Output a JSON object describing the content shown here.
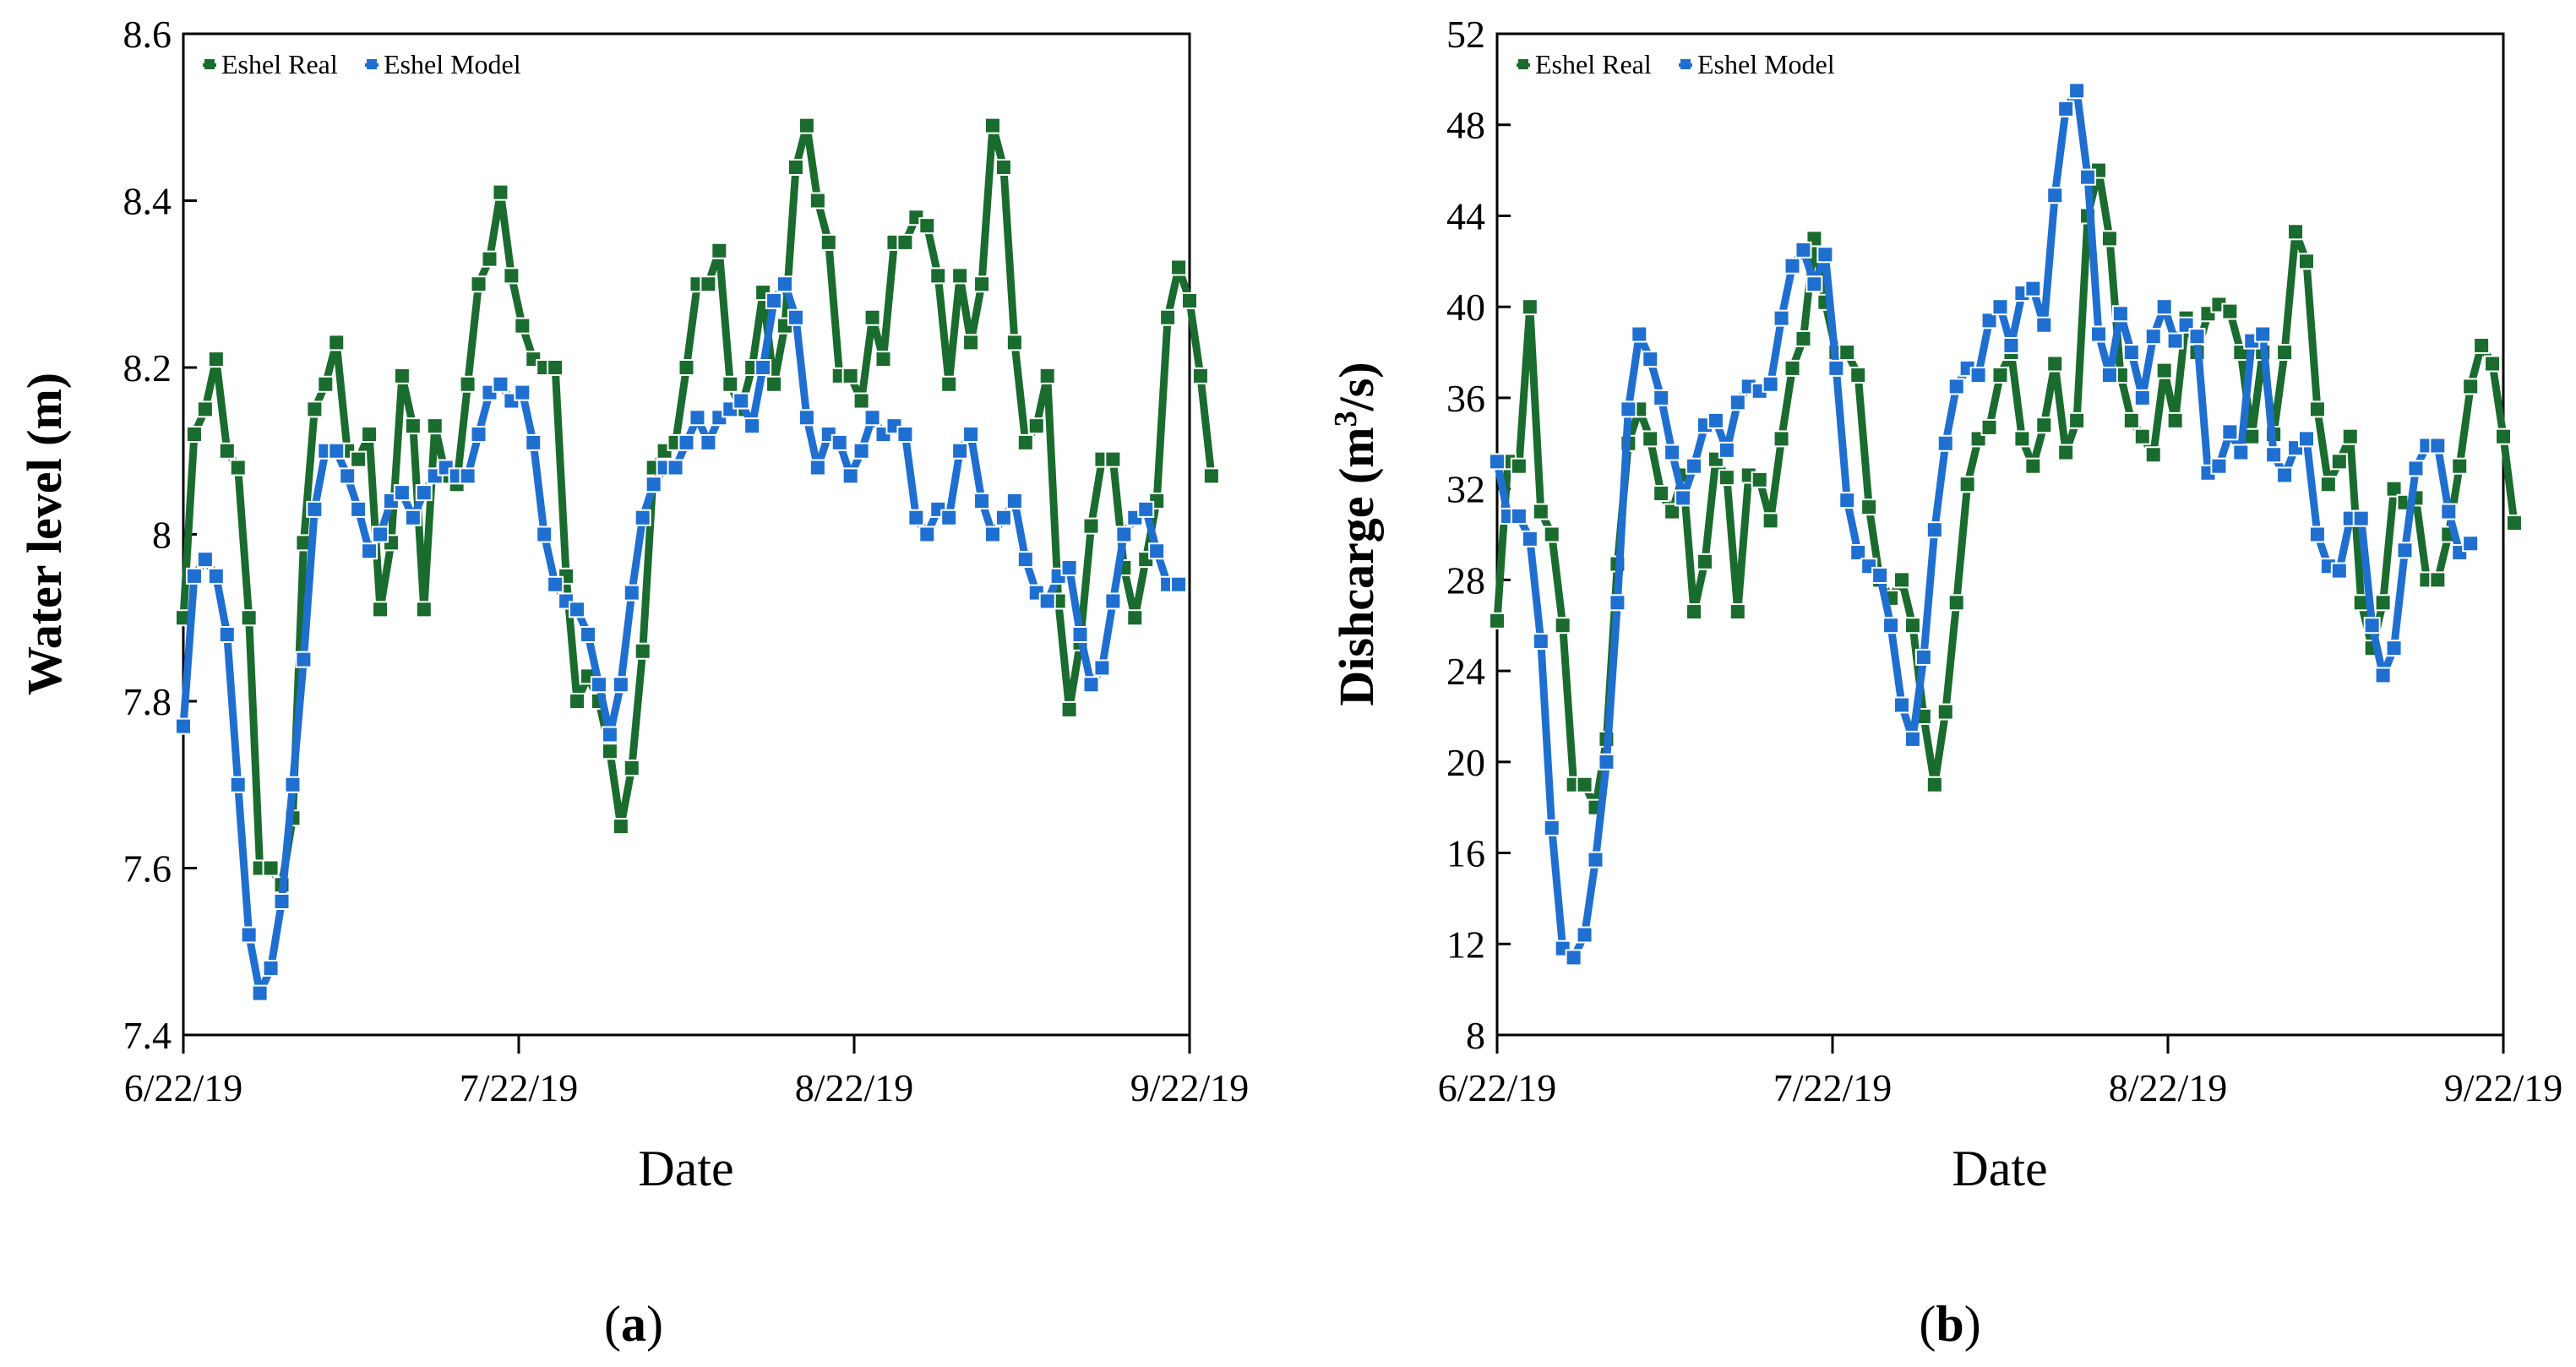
{
  "chart_data": [
    {
      "type": "line",
      "panel_label": "a",
      "xlabel": "Date",
      "ylabel": "Water level (m)",
      "xticks": [
        "6/22/19",
        "7/22/19",
        "8/22/19",
        "9/22/19"
      ],
      "xrange": [
        0,
        92
      ],
      "ylim": [
        7.4,
        8.6
      ],
      "yticks": [
        7.4,
        7.6,
        7.8,
        8,
        8.2,
        8.4,
        8.6
      ],
      "legend": "top-left",
      "series": [
        {
          "name": "Eshel Real",
          "color": "#1a6b2e",
          "values": [
            7.9,
            8.12,
            8.15,
            8.21,
            8.1,
            8.08,
            7.9,
            7.6,
            7.6,
            7.58,
            7.66,
            7.99,
            8.15,
            8.18,
            8.23,
            8.1,
            8.09,
            8.12,
            7.91,
            7.99,
            8.19,
            8.13,
            7.91,
            8.13,
            8.07,
            8.06,
            8.18,
            8.3,
            8.33,
            8.41,
            8.31,
            8.25,
            8.21,
            8.2,
            8.2,
            7.95,
            7.8,
            7.83,
            7.8,
            7.74,
            7.65,
            7.72,
            7.86,
            8.08,
            8.1,
            8.11,
            8.2,
            8.3,
            8.3,
            8.34,
            8.18,
            8.15,
            8.2,
            8.29,
            8.18,
            8.25,
            8.44,
            8.49,
            8.4,
            8.35,
            8.19,
            8.19,
            8.16,
            8.26,
            8.21,
            8.35,
            8.35,
            8.38,
            8.37,
            8.31,
            8.18,
            8.31,
            8.23,
            8.3,
            8.49,
            8.44,
            8.23,
            8.11,
            8.13,
            8.19,
            7.92,
            7.79,
            7.87,
            8.01,
            8.09,
            8.09,
            7.96,
            7.9,
            7.97,
            8.04,
            8.26,
            8.32,
            8.28,
            8.19,
            8.07
          ]
        },
        {
          "name": "Eshel Model",
          "color": "#1f6fd1",
          "values": [
            7.77,
            7.95,
            7.97,
            7.95,
            7.88,
            7.7,
            7.52,
            7.45,
            7.48,
            7.56,
            7.7,
            7.85,
            8.03,
            8.1,
            8.1,
            8.07,
            8.03,
            7.98,
            8.0,
            8.04,
            8.05,
            8.02,
            8.05,
            8.07,
            8.08,
            8.07,
            8.07,
            8.12,
            8.17,
            8.18,
            8.16,
            8.17,
            8.11,
            8.0,
            7.94,
            7.92,
            7.91,
            7.88,
            7.82,
            7.76,
            7.82,
            7.93,
            8.02,
            8.06,
            8.08,
            8.08,
            8.11,
            8.14,
            8.11,
            8.14,
            8.15,
            8.16,
            8.13,
            8.2,
            8.28,
            8.3,
            8.26,
            8.14,
            8.08,
            8.12,
            8.11,
            8.07,
            8.1,
            8.14,
            8.12,
            8.13,
            8.12,
            8.02,
            8.0,
            8.03,
            8.02,
            8.1,
            8.12,
            8.04,
            8.0,
            8.02,
            8.04,
            7.97,
            7.93,
            7.92,
            7.95,
            7.96,
            7.88,
            7.82,
            7.84,
            7.92,
            8.0,
            8.02,
            8.03,
            7.98,
            7.94,
            7.94
          ]
        }
      ]
    },
    {
      "type": "line",
      "panel_label": "b",
      "xlabel": "Date",
      "ylabel_main": "Dishcarge (m",
      "ylabel_sup": "3",
      "ylabel_end": "/s)",
      "xticks": [
        "6/22/19",
        "7/22/19",
        "8/22/19",
        "9/22/19"
      ],
      "xrange": [
        0,
        92
      ],
      "ylim": [
        8,
        52
      ],
      "yticks": [
        8,
        12,
        16,
        20,
        24,
        28,
        32,
        36,
        40,
        44,
        48,
        52
      ],
      "legend": "top-left",
      "series": [
        {
          "name": "Eshel Real",
          "color": "#1a6b2e",
          "values": [
            26.2,
            33.2,
            33.0,
            40.0,
            31.0,
            30.0,
            26.0,
            19.0,
            19.0,
            18.0,
            21.0,
            28.7,
            34.0,
            35.5,
            34.2,
            31.8,
            31.0,
            32.6,
            26.6,
            28.8,
            33.3,
            32.5,
            26.6,
            32.6,
            32.4,
            30.6,
            34.2,
            37.3,
            38.6,
            43.0,
            40.2,
            38.0,
            38.0,
            37.0,
            31.2,
            28.0,
            27.2,
            28.0,
            26.0,
            22.0,
            19.0,
            22.2,
            27.0,
            32.2,
            34.2,
            34.7,
            37.0,
            38.0,
            34.2,
            33.0,
            34.8,
            37.5,
            33.6,
            35.0,
            44.0,
            46.0,
            43.0,
            37.0,
            35.0,
            34.3,
            33.5,
            37.2,
            35.0,
            39.5,
            38.0,
            39.7,
            40.1,
            39.8,
            38.0,
            34.3,
            38.0,
            34.4,
            38.0,
            43.3,
            42.0,
            35.5,
            32.2,
            33.2,
            34.3,
            27.0,
            25.0,
            27.0,
            32.0,
            31.4,
            31.6,
            28.0,
            28.0,
            30.0,
            33.0,
            36.5,
            38.3,
            37.5,
            34.3,
            30.5
          ]
        },
        {
          "name": "Eshel Model",
          "color": "#1f6fd1",
          "values": [
            33.2,
            30.8,
            30.8,
            29.8,
            25.3,
            17.1,
            11.8,
            11.4,
            12.4,
            15.7,
            20.0,
            27.0,
            35.5,
            38.8,
            37.7,
            36.0,
            33.6,
            31.6,
            33.0,
            34.8,
            35.0,
            33.7,
            35.8,
            36.5,
            36.3,
            36.6,
            39.5,
            41.8,
            42.5,
            41.0,
            42.3,
            37.3,
            31.5,
            29.2,
            28.6,
            28.2,
            26.0,
            22.5,
            21.0,
            24.6,
            30.2,
            34.0,
            36.5,
            37.3,
            37.0,
            39.4,
            40.0,
            38.3,
            40.6,
            40.8,
            39.2,
            44.9,
            48.7,
            49.5,
            45.7,
            38.8,
            37.0,
            39.7,
            38.0,
            36.0,
            38.7,
            40.0,
            38.5,
            39.2,
            38.7,
            32.7,
            33.0,
            34.5,
            33.6,
            38.5,
            38.8,
            33.5,
            32.6,
            33.8,
            34.2,
            30.0,
            28.6,
            28.4,
            30.7,
            30.7,
            26.0,
            23.8,
            25.0,
            29.3,
            32.9,
            33.9,
            33.9,
            31.0,
            29.2,
            29.6
          ]
        }
      ]
    }
  ]
}
